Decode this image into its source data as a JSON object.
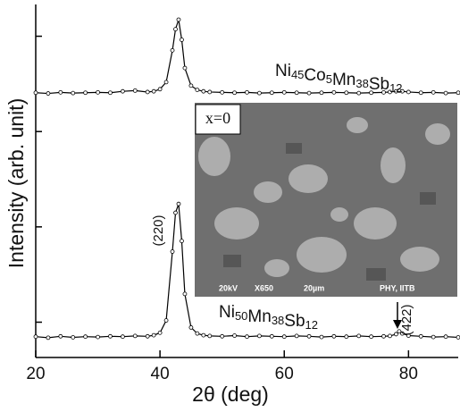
{
  "chart_data": {
    "type": "line",
    "x_label": "2θ (deg)",
    "y_label": "Intensity (arb. unit)",
    "xlim": [
      20,
      88
    ],
    "xticks": [
      20,
      40,
      60,
      80
    ],
    "ylim": [
      0,
      100
    ],
    "yticks": [
      10,
      37,
      64,
      91
    ],
    "x": [
      20,
      22,
      24,
      26,
      28,
      30,
      32,
      34,
      36,
      38,
      39,
      40,
      41,
      42,
      42.5,
      43,
      43.5,
      44,
      45,
      46,
      47,
      48,
      50,
      52,
      54,
      56,
      58,
      60,
      62,
      64,
      66,
      68,
      70,
      72,
      74,
      76,
      77,
      78,
      78.5,
      79,
      80,
      82,
      84,
      86,
      88
    ],
    "series": [
      {
        "name": "Ni45Co5Mn38Sb12",
        "color": "#000000",
        "values": [
          75.0,
          74.8,
          75.1,
          74.9,
          75.0,
          75.1,
          75.0,
          75.4,
          75.6,
          75.2,
          75.4,
          76.0,
          78,
          87,
          93,
          95.7,
          90,
          82,
          77,
          75.8,
          75.4,
          75.2,
          75.1,
          75.0,
          75.1,
          74.9,
          75.0,
          75.1,
          75.0,
          74.9,
          75.0,
          75.1,
          75.0,
          74.9,
          75.0,
          75.1,
          75.2,
          75.4,
          75.6,
          75.4,
          75.2,
          75.0,
          75.1,
          74.9,
          75.0
        ]
      },
      {
        "name": "Ni50Mn38Sb12",
        "color": "#000000",
        "values": [
          5.9,
          5.6,
          6.0,
          5.7,
          5.9,
          5.8,
          6.0,
          5.9,
          6.1,
          6.0,
          6.3,
          7.0,
          10.5,
          30,
          41,
          43.5,
          33,
          18,
          8.5,
          6.8,
          6.3,
          6.1,
          6.0,
          6.2,
          5.9,
          6.1,
          6.0,
          5.9,
          6.1,
          6.0,
          5.8,
          6.0,
          5.9,
          6.1,
          5.9,
          6.0,
          6.1,
          6.6,
          7.4,
          6.8,
          6.2,
          6.0,
          5.8,
          5.9,
          5.7
        ]
      }
    ],
    "annotations": [
      "(220)",
      "(422)"
    ],
    "inset": {
      "label": "x=0",
      "caption": [
        "20kV",
        "X650",
        "20µm",
        "PHY, IITB"
      ]
    }
  }
}
